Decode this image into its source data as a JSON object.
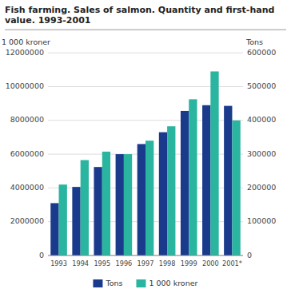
{
  "chart_data": {
    "type": "bar",
    "title": "Fish farming. Sales of salmon. Quantity and first-hand\nvalue. 1993-2001",
    "categories": [
      "1993",
      "1994",
      "1995",
      "1996",
      "1997",
      "1998",
      "1999",
      "2000",
      "2001*"
    ],
    "series": [
      {
        "name": "Tons",
        "color": "#1a3a8c",
        "axis": "y2",
        "values": [
          155000,
          203000,
          262000,
          300000,
          330000,
          365000,
          428000,
          445000,
          443000
        ]
      },
      {
        "name": "1 000 kroner",
        "color": "#2ab5a0",
        "values": [
          4200000,
          5650000,
          6150000,
          6000000,
          6800000,
          7650000,
          9250000,
          10900000,
          8000000
        ]
      }
    ],
    "ylabel": "1 000 kroner",
    "y2label": "Tons",
    "ylim": [
      0,
      12000000
    ],
    "yticks": [
      0,
      2000000,
      4000000,
      6000000,
      8000000,
      10000000,
      12000000
    ],
    "y2lim": [
      0,
      600000
    ],
    "y2ticks": [
      0,
      100000,
      200000,
      300000,
      400000,
      500000,
      600000
    ],
    "grid": true,
    "legend": "bottom"
  }
}
